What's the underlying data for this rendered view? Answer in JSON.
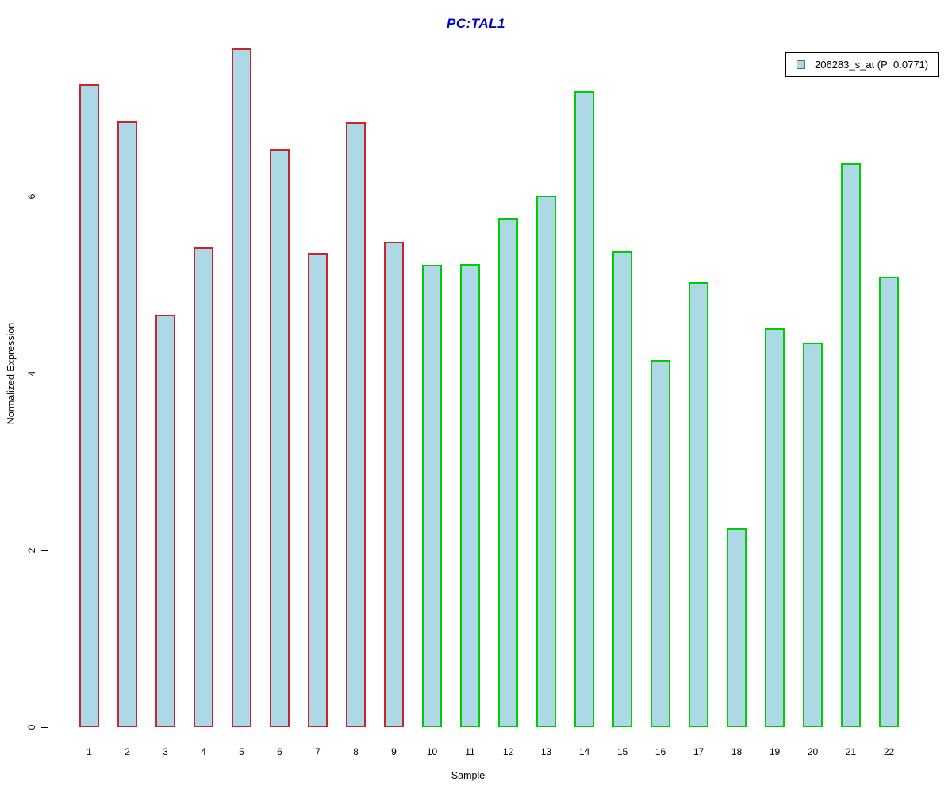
{
  "title": {
    "text": "PC:TAL1",
    "color": "#0000CC"
  },
  "legend": {
    "label": "206283_s_at (P: 0.0771)",
    "swatch_fill": "#ADD8E6",
    "position": "top-right"
  },
  "axes": {
    "y_label": "Normalized Expression",
    "x_label": "Sample",
    "y_ticks": [
      "0",
      "2",
      "4",
      "6"
    ]
  },
  "chart_data": {
    "type": "bar",
    "title": "PC:TAL1",
    "xlabel": "Sample",
    "ylabel": "Normalized Expression",
    "ylim": [
      0,
      7.8
    ],
    "yticks": [
      0,
      2,
      4,
      6
    ],
    "grid": false,
    "legend_entries": [
      "206283_s_at (P: 0.0771)"
    ],
    "legend_position": "top-right",
    "categories": [
      "1",
      "2",
      "3",
      "4",
      "5",
      "6",
      "7",
      "8",
      "9",
      "10",
      "11",
      "12",
      "13",
      "14",
      "15",
      "16",
      "17",
      "18",
      "19",
      "20",
      "21",
      "22"
    ],
    "values": [
      7.27,
      6.85,
      4.66,
      5.43,
      7.68,
      6.54,
      5.36,
      6.84,
      5.49,
      5.23,
      5.24,
      5.76,
      6.01,
      7.19,
      5.38,
      4.15,
      5.03,
      2.25,
      4.51,
      4.35,
      6.38,
      5.09
    ],
    "bar_fill": "#ADD8E6",
    "groups": [
      {
        "name": "group-red",
        "border_color": "#C8242E",
        "first_sample": 1,
        "last_sample": 9
      },
      {
        "name": "group-green",
        "border_color": "#00CC00",
        "first_sample": 10,
        "last_sample": 22
      }
    ]
  }
}
